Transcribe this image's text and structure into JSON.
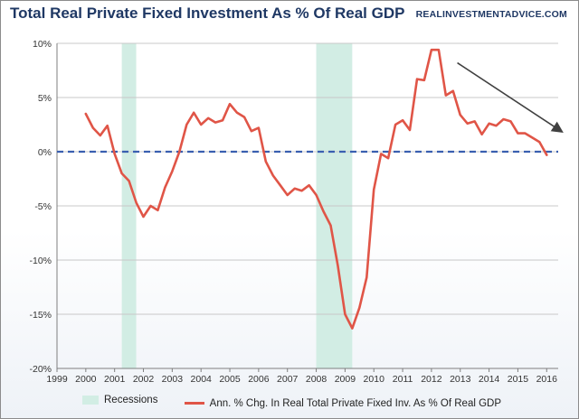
{
  "header": {
    "title": "Total Real Private Fixed Investment As % Of Real GDP",
    "source": "REALINVESTMENTADVICE.COM"
  },
  "legend": {
    "recessions_label": "Recessions",
    "series_label": "Ann. % Chg. In Real Total Private Fixed Inv. As % Of Real GDP"
  },
  "colors": {
    "series": "#e05547",
    "zero_line": "#3a5fb0",
    "recession": "#d2ede4",
    "trend_arrow": "#404040",
    "grid": "#c8c8c8"
  },
  "chart_data": {
    "type": "line",
    "title": "Total Real Private Fixed Investment As % Of Real GDP",
    "xlim": [
      1999,
      2016.4
    ],
    "ylim": [
      -20,
      10
    ],
    "x_ticks": [
      1999,
      2000,
      2001,
      2002,
      2003,
      2004,
      2005,
      2006,
      2007,
      2008,
      2009,
      2010,
      2011,
      2012,
      2013,
      2014,
      2015,
      2016
    ],
    "x_tick_labels": [
      "1999",
      "2000",
      "2001",
      "2002",
      "2003",
      "2004",
      "2005",
      "2006",
      "2007",
      "2008",
      "2009",
      "2010",
      "2011",
      "2012",
      "2013",
      "2014",
      "2015",
      "2016"
    ],
    "y_ticks": [
      10,
      5,
      0,
      -5,
      -10,
      -15,
      -20
    ],
    "y_tick_labels": [
      "10%",
      "5%",
      "0%",
      "-5%",
      "-10%",
      "-15%",
      "-20%"
    ],
    "grid": "horizontal",
    "legend_position": "bottom",
    "reference_line": {
      "y": 0,
      "style": "dashed"
    },
    "recessions": [
      {
        "start": 2001.25,
        "end": 2001.75
      },
      {
        "start": 2008.0,
        "end": 2009.25
      }
    ],
    "trend_arrow": {
      "from": [
        2012.9,
        8.2
      ],
      "to": [
        2016.5,
        1.9
      ]
    },
    "series": [
      {
        "name": "Ann. % Chg. In Real Total Private Fixed Inv. As % Of Real GDP",
        "points": [
          [
            2000.0,
            3.5
          ],
          [
            2000.25,
            2.2
          ],
          [
            2000.5,
            1.5
          ],
          [
            2000.75,
            2.4
          ],
          [
            2001.0,
            -0.2
          ],
          [
            2001.25,
            -2.0
          ],
          [
            2001.5,
            -2.7
          ],
          [
            2001.75,
            -4.7
          ],
          [
            2002.0,
            -6.0
          ],
          [
            2002.25,
            -5.0
          ],
          [
            2002.5,
            -5.4
          ],
          [
            2002.75,
            -3.3
          ],
          [
            2003.0,
            -1.8
          ],
          [
            2003.25,
            0.0
          ],
          [
            2003.5,
            2.5
          ],
          [
            2003.75,
            3.6
          ],
          [
            2004.0,
            2.5
          ],
          [
            2004.25,
            3.1
          ],
          [
            2004.5,
            2.7
          ],
          [
            2004.75,
            2.9
          ],
          [
            2005.0,
            4.4
          ],
          [
            2005.25,
            3.6
          ],
          [
            2005.5,
            3.2
          ],
          [
            2005.75,
            1.9
          ],
          [
            2006.0,
            2.2
          ],
          [
            2006.25,
            -0.9
          ],
          [
            2006.5,
            -2.2
          ],
          [
            2006.75,
            -3.1
          ],
          [
            2007.0,
            -4.0
          ],
          [
            2007.25,
            -3.4
          ],
          [
            2007.5,
            -3.6
          ],
          [
            2007.75,
            -3.1
          ],
          [
            2008.0,
            -4.0
          ],
          [
            2008.25,
            -5.5
          ],
          [
            2008.5,
            -6.8
          ],
          [
            2008.75,
            -10.5
          ],
          [
            2009.0,
            -15.0
          ],
          [
            2009.25,
            -16.3
          ],
          [
            2009.5,
            -14.4
          ],
          [
            2009.75,
            -11.6
          ],
          [
            2010.0,
            -3.5
          ],
          [
            2010.25,
            -0.2
          ],
          [
            2010.5,
            -0.6
          ],
          [
            2010.75,
            2.5
          ],
          [
            2011.0,
            2.9
          ],
          [
            2011.25,
            2.0
          ],
          [
            2011.5,
            6.7
          ],
          [
            2011.75,
            6.6
          ],
          [
            2012.0,
            9.4
          ],
          [
            2012.25,
            9.4
          ],
          [
            2012.5,
            5.2
          ],
          [
            2012.75,
            5.6
          ],
          [
            2013.0,
            3.4
          ],
          [
            2013.25,
            2.6
          ],
          [
            2013.5,
            2.8
          ],
          [
            2013.75,
            1.6
          ],
          [
            2014.0,
            2.6
          ],
          [
            2014.25,
            2.4
          ],
          [
            2014.5,
            3.0
          ],
          [
            2014.75,
            2.8
          ],
          [
            2015.0,
            1.7
          ],
          [
            2015.25,
            1.7
          ],
          [
            2015.5,
            1.3
          ],
          [
            2015.75,
            0.9
          ],
          [
            2016.0,
            -0.3
          ]
        ]
      }
    ]
  }
}
